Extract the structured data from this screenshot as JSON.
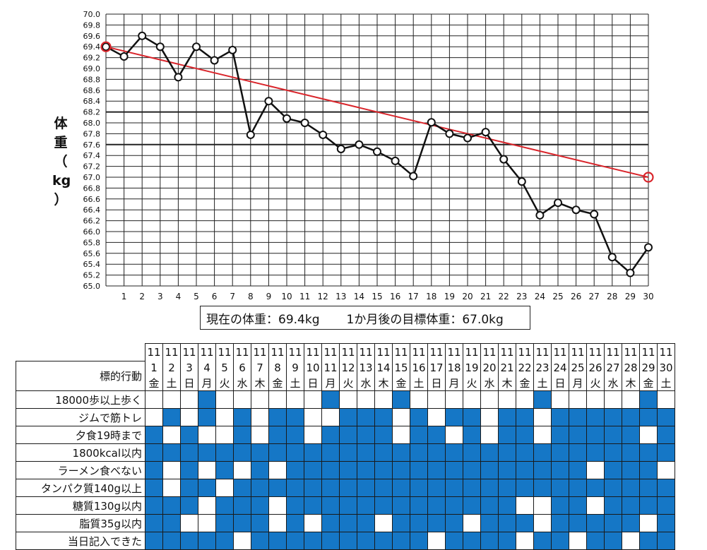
{
  "colors": {
    "weight_line": "#111111",
    "target_line": "#d9252b",
    "grid": "#222222",
    "habit_done": "#1577c6"
  },
  "y_axis_label_chars": [
    "体",
    "重",
    "（",
    "kg",
    "）"
  ],
  "summary": {
    "current": "現在の体重：69.4kg",
    "target": "1か月後の目標体重：67.0kg"
  },
  "chart_data": {
    "type": "line",
    "title": "",
    "xlabel": "",
    "ylabel": "体重（kg）",
    "x": [
      0,
      1,
      2,
      3,
      4,
      5,
      6,
      7,
      8,
      9,
      10,
      11,
      12,
      13,
      14,
      15,
      16,
      17,
      18,
      19,
      20,
      21,
      22,
      23,
      24,
      25,
      26,
      27,
      28,
      29,
      30
    ],
    "x_tick_labels": [
      "1",
      "2",
      "3",
      "4",
      "5",
      "6",
      "7",
      "8",
      "9",
      "10",
      "11",
      "12",
      "13",
      "14",
      "15",
      "16",
      "17",
      "18",
      "19",
      "20",
      "21",
      "22",
      "23",
      "24",
      "25",
      "26",
      "27",
      "28",
      "29",
      "30"
    ],
    "ylim": [
      65.0,
      70.0
    ],
    "y_tick_step": 0.2,
    "y_tick_labels": [
      "65.0",
      "65.2",
      "65.4",
      "65.6",
      "65.8",
      "66.0",
      "66.2",
      "66.4",
      "66.6",
      "66.8",
      "67.0",
      "67.2",
      "67.4",
      "67.6",
      "67.8",
      "68.0",
      "68.2",
      "68.4",
      "68.6",
      "68.8",
      "69.0",
      "69.2",
      "69.4",
      "69.6",
      "69.8",
      "70.0"
    ],
    "highlight_lines": [
      68.2,
      67.6
    ],
    "series": [
      {
        "name": "体重",
        "x": [
          0,
          1,
          2,
          3,
          4,
          5,
          6,
          7,
          8,
          9,
          10,
          11,
          12,
          13,
          14,
          15,
          16,
          17,
          18,
          19,
          20,
          21,
          22,
          23,
          24,
          25,
          26,
          27,
          28,
          29,
          30
        ],
        "values": [
          69.4,
          69.22,
          69.6,
          69.4,
          68.84,
          69.4,
          69.15,
          69.34,
          67.78,
          68.4,
          68.08,
          68.0,
          67.78,
          67.52,
          67.6,
          67.47,
          67.3,
          67.02,
          68.01,
          67.8,
          67.72,
          67.83,
          67.33,
          66.92,
          66.3,
          66.53,
          66.4,
          66.32,
          65.53,
          65.24,
          65.71
        ]
      },
      {
        "name": "目標",
        "x": [
          0,
          30
        ],
        "values": [
          69.4,
          67.0
        ]
      }
    ]
  },
  "habits": {
    "header_label": "標的行動",
    "month": "11",
    "days": [
      "1",
      "2",
      "3",
      "4",
      "5",
      "6",
      "7",
      "8",
      "9",
      "10",
      "11",
      "12",
      "13",
      "14",
      "15",
      "16",
      "17",
      "18",
      "19",
      "20",
      "21",
      "22",
      "23",
      "24",
      "25",
      "26",
      "27",
      "28",
      "29",
      "30"
    ],
    "weekdays": [
      "金",
      "土",
      "日",
      "月",
      "火",
      "水",
      "木",
      "金",
      "土",
      "日",
      "月",
      "火",
      "水",
      "木",
      "金",
      "土",
      "日",
      "月",
      "火",
      "水",
      "木",
      "金",
      "土",
      "日",
      "月",
      "火",
      "水",
      "木",
      "金",
      "土"
    ],
    "rows": [
      {
        "label": "18000歩以上歩く",
        "done": [
          0,
          0,
          0,
          1,
          0,
          0,
          0,
          0,
          0,
          0,
          1,
          0,
          0,
          0,
          1,
          0,
          0,
          0,
          0,
          0,
          0,
          0,
          1,
          0,
          0,
          0,
          0,
          0,
          1,
          0
        ]
      },
      {
        "label": "ジムで筋トレ",
        "done": [
          0,
          1,
          0,
          1,
          0,
          1,
          0,
          1,
          1,
          0,
          0,
          1,
          1,
          1,
          0,
          1,
          0,
          1,
          1,
          0,
          1,
          1,
          0,
          1,
          1,
          1,
          1,
          1,
          1,
          1
        ]
      },
      {
        "label": "夕食19時まで",
        "done": [
          1,
          0,
          1,
          0,
          0,
          1,
          0,
          1,
          1,
          0,
          1,
          1,
          1,
          1,
          0,
          1,
          1,
          0,
          1,
          0,
          1,
          1,
          0,
          1,
          1,
          1,
          1,
          1,
          0,
          1
        ]
      },
      {
        "label": "1800kcal以内",
        "done": [
          1,
          1,
          1,
          1,
          1,
          1,
          1,
          1,
          1,
          1,
          1,
          1,
          1,
          1,
          1,
          1,
          1,
          1,
          1,
          1,
          1,
          1,
          1,
          1,
          1,
          1,
          1,
          1,
          1,
          1
        ]
      },
      {
        "label": "ラーメン食べない",
        "done": [
          1,
          0,
          1,
          0,
          1,
          0,
          1,
          0,
          1,
          1,
          1,
          1,
          1,
          1,
          1,
          1,
          1,
          1,
          1,
          1,
          1,
          1,
          1,
          1,
          1,
          0,
          1,
          1,
          1,
          0
        ]
      },
      {
        "label": "タンパク質140g以上",
        "done": [
          1,
          0,
          1,
          1,
          0,
          1,
          1,
          1,
          1,
          1,
          1,
          1,
          1,
          1,
          1,
          1,
          1,
          1,
          1,
          1,
          1,
          1,
          1,
          1,
          1,
          1,
          1,
          1,
          1,
          1
        ]
      },
      {
        "label": "糖質130g以内",
        "done": [
          1,
          1,
          1,
          0,
          1,
          1,
          1,
          0,
          1,
          1,
          1,
          1,
          1,
          1,
          1,
          1,
          1,
          1,
          1,
          1,
          1,
          0,
          0,
          1,
          1,
          0,
          1,
          1,
          1,
          1
        ]
      },
      {
        "label": "脂質35g以内",
        "done": [
          1,
          1,
          0,
          0,
          1,
          1,
          1,
          0,
          1,
          0,
          1,
          1,
          1,
          0,
          1,
          1,
          1,
          1,
          0,
          1,
          1,
          1,
          0,
          1,
          1,
          1,
          1,
          1,
          0,
          1
        ]
      },
      {
        "label": "当日記入できた",
        "done": [
          1,
          1,
          1,
          1,
          1,
          0,
          1,
          1,
          1,
          1,
          1,
          1,
          1,
          1,
          1,
          1,
          0,
          1,
          1,
          1,
          1,
          0,
          1,
          1,
          0,
          1,
          1,
          0,
          1,
          1
        ]
      }
    ]
  }
}
